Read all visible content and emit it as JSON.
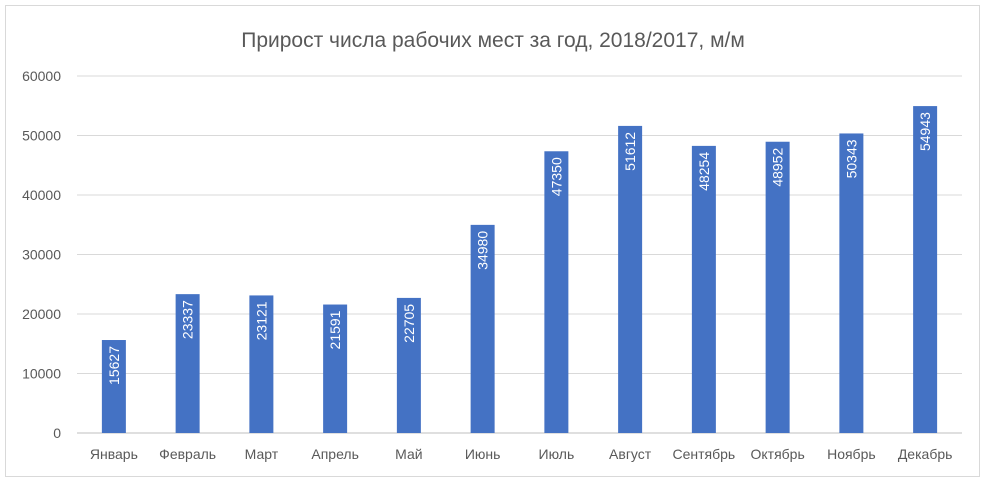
{
  "chart_data": {
    "type": "bar",
    "title": "Прирост числа рабочих мест за год, 2018/2017, м/м",
    "xlabel": "",
    "ylabel": "",
    "categories": [
      "Январь",
      "Февраль",
      "Март",
      "Апрель",
      "Май",
      "Июнь",
      "Июль",
      "Август",
      "Сентябрь",
      "Октябрь",
      "Ноябрь",
      "Декабрь"
    ],
    "values": [
      15627,
      23337,
      23121,
      21591,
      22705,
      34980,
      47350,
      51612,
      48254,
      48952,
      50343,
      54943
    ],
    "ylim": [
      0,
      60000
    ],
    "yticks": [
      0,
      10000,
      20000,
      30000,
      40000,
      50000,
      60000
    ],
    "grid": true,
    "legend": "none",
    "bar_color": "#4472c4",
    "data_labels": "inside-end, vertical"
  }
}
